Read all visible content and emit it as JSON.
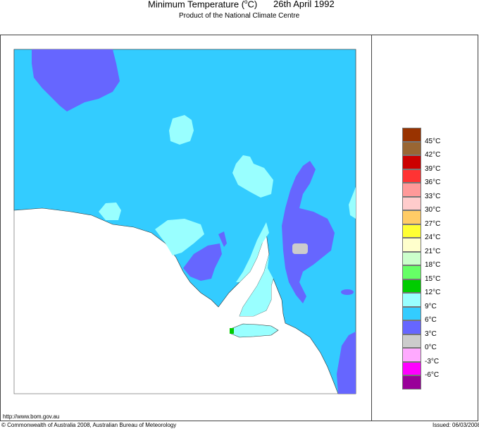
{
  "header": {
    "title": "Minimum Temperature (",
    "title_unit": "o",
    "title_tail": "C)",
    "date": "26th April 1992",
    "subtitle": "Product of the National Climate Centre"
  },
  "footer": {
    "url": "http://www.bom.gov.au",
    "copyright": "© Commonwealth of Australia 2008, Australian Bureau of Meteorology",
    "issued": "Issued: 06/03/2008"
  },
  "legend": {
    "colors": [
      "#993300",
      "#996633",
      "#cc0000",
      "#ff3333",
      "#ff9999",
      "#ffcccc",
      "#ffcc66",
      "#ffff33",
      "#ffffcc",
      "#ccffcc",
      "#66ff66",
      "#00cc00",
      "#99ffff",
      "#33ccff",
      "#6666ff",
      "#cccccc",
      "#ffaaff",
      "#ff00ff",
      "#990099"
    ],
    "labels": [
      "45°C",
      "42°C",
      "39°C",
      "36°C",
      "33°C",
      "30°C",
      "27°C",
      "24°C",
      "21°C",
      "18°C",
      "15°C",
      "12°C",
      "9°C",
      "6°C",
      "3°C",
      "0°C",
      "-3°C",
      "-6°C"
    ]
  },
  "map_colors": {
    "ocean": "#ffffff",
    "range_6_9": "#33ccff",
    "range_9_12": "#99ffff",
    "range_3_6": "#6666ff",
    "range_0_3": "#cccccc",
    "range_12_15": "#00cc00"
  }
}
